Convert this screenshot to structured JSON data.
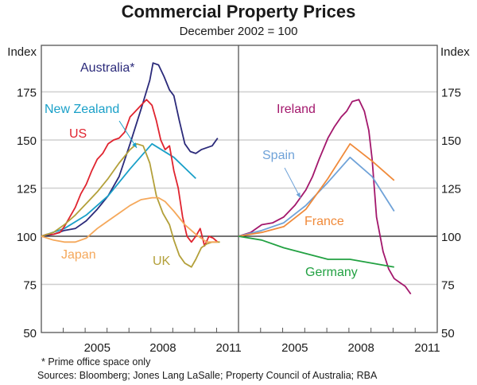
{
  "chart_data": [
    {
      "type": "line",
      "panel": "left",
      "title": "Commercial Property Prices",
      "subtitle": "December 2002 = 100",
      "ylabel": "Index",
      "ylim": [
        50,
        190
      ],
      "yticks": [
        50,
        75,
        100,
        125,
        150,
        175
      ],
      "xlim": [
        2002.95,
        2011.95
      ],
      "xtick_labels": [
        "2005",
        "2008",
        "2011"
      ],
      "grid": true,
      "series": [
        {
          "name": "Australia*",
          "color": "#2b2a7a",
          "x": [
            2002.95,
            2003.5,
            2004.0,
            2004.5,
            2005.0,
            2005.5,
            2006.0,
            2006.5,
            2007.0,
            2007.5,
            2007.9,
            2008.05,
            2008.3,
            2008.55,
            2008.8,
            2009.0,
            2009.25,
            2009.5,
            2009.75,
            2010.0,
            2010.25,
            2010.5,
            2010.75,
            2011.0
          ],
          "y": [
            100,
            101,
            103,
            104,
            108,
            114,
            121,
            131,
            148,
            166,
            181,
            190,
            189,
            183,
            176,
            173,
            160,
            148,
            144,
            143,
            145,
            146,
            147,
            151
          ]
        },
        {
          "name": "New Zealand",
          "color": "#1aa0c8",
          "x": [
            2002.95,
            2004.0,
            2005.0,
            2006.0,
            2007.0,
            2008.0,
            2009.0,
            2010.0
          ],
          "y": [
            100,
            104,
            111,
            121,
            135,
            148,
            141,
            130
          ]
        },
        {
          "name": "US",
          "color": "#e0242f",
          "x": [
            2002.95,
            2003.2,
            2003.5,
            2003.8,
            2004.0,
            2004.25,
            2004.5,
            2004.75,
            2005.0,
            2005.25,
            2005.5,
            2005.75,
            2006.0,
            2006.25,
            2006.5,
            2006.75,
            2007.0,
            2007.25,
            2007.5,
            2007.75,
            2008.0,
            2008.2,
            2008.4,
            2008.6,
            2008.8,
            2009.0,
            2009.2,
            2009.4,
            2009.6,
            2009.8,
            2010.0,
            2010.2,
            2010.4,
            2010.6,
            2010.8,
            2011.0
          ],
          "y": [
            100,
            101,
            101,
            102,
            105,
            110,
            115,
            122,
            127,
            134,
            140,
            143,
            148,
            150,
            151,
            154,
            162,
            165,
            168,
            171,
            168,
            160,
            150,
            145,
            147,
            134,
            125,
            110,
            100,
            97,
            100,
            104,
            95,
            100,
            99,
            97
          ]
        },
        {
          "name": "UK",
          "color": "#b3a03a",
          "x": [
            2002.95,
            2003.5,
            2004.0,
            2004.5,
            2005.0,
            2005.5,
            2006.0,
            2006.5,
            2007.0,
            2007.3,
            2007.6,
            2007.9,
            2008.2,
            2008.5,
            2008.8,
            2009.0,
            2009.25,
            2009.5,
            2009.8,
            2010.0,
            2010.25,
            2010.5,
            2010.75,
            2011.1
          ],
          "y": [
            100,
            102,
            106,
            111,
            117,
            123,
            130,
            138,
            145,
            148,
            147,
            138,
            121,
            112,
            106,
            98,
            90,
            86,
            84,
            88,
            94,
            96,
            97,
            97
          ]
        },
        {
          "name": "Japan",
          "color": "#f5a85b",
          "x": [
            2002.95,
            2003.5,
            2004.0,
            2004.5,
            2005.0,
            2005.5,
            2006.0,
            2006.5,
            2007.0,
            2007.5,
            2008.0,
            2008.3,
            2008.6,
            2009.0,
            2009.5,
            2010.0,
            2010.5,
            2011.0
          ],
          "y": [
            100,
            98,
            97,
            97,
            99,
            104,
            108,
            112,
            116,
            119,
            120,
            120,
            118,
            113,
            106,
            101,
            97,
            97
          ]
        }
      ],
      "annotations": [
        {
          "text": "Australia*",
          "color": "#2b2a7a"
        },
        {
          "text": "New Zealand",
          "color": "#1aa0c8",
          "arrow": true
        },
        {
          "text": "US",
          "color": "#e0242f"
        },
        {
          "text": "Japan",
          "color": "#f5a85b"
        },
        {
          "text": "UK",
          "color": "#b3a03a"
        }
      ]
    },
    {
      "type": "line",
      "panel": "right",
      "ylabel": "Index",
      "ylim": [
        50,
        190
      ],
      "yticks": [
        50,
        75,
        100,
        125,
        150,
        175
      ],
      "xlim": [
        2002.95,
        2011.95
      ],
      "xtick_labels": [
        "2005",
        "2008",
        "2011"
      ],
      "grid": true,
      "series": [
        {
          "name": "Ireland",
          "color": "#a3176c",
          "x": [
            2002.95,
            2003.5,
            2004.0,
            2004.5,
            2005.0,
            2005.5,
            2006.0,
            2006.3,
            2006.6,
            2007.0,
            2007.3,
            2007.6,
            2007.85,
            2008.1,
            2008.4,
            2008.65,
            2008.85,
            2009.0,
            2009.2,
            2009.5,
            2009.75,
            2010.0,
            2010.25,
            2010.5,
            2010.75
          ],
          "y": [
            100,
            102,
            106,
            107,
            110,
            116,
            124,
            131,
            140,
            151,
            157,
            162,
            165,
            170,
            171,
            165,
            155,
            140,
            110,
            92,
            83,
            78,
            76,
            74,
            70
          ]
        },
        {
          "name": "Spain",
          "color": "#6fa2d8",
          "x": [
            2002.95,
            2004.0,
            2005.0,
            2006.0,
            2007.0,
            2008.0,
            2009.0,
            2010.0
          ],
          "y": [
            100,
            103,
            107,
            116,
            128,
            141,
            131,
            113
          ]
        },
        {
          "name": "France",
          "color": "#f08a3a",
          "x": [
            2002.95,
            2004.0,
            2005.0,
            2006.0,
            2007.0,
            2008.0,
            2009.0,
            2010.0
          ],
          "y": [
            100,
            102,
            105,
            114,
            130,
            148,
            139,
            129
          ]
        },
        {
          "name": "Germany",
          "color": "#22a142",
          "x": [
            2002.95,
            2004.0,
            2005.0,
            2006.0,
            2007.0,
            2008.0,
            2009.0,
            2010.0
          ],
          "y": [
            100,
            98,
            94,
            91,
            88,
            88,
            86,
            84
          ]
        }
      ],
      "annotations": [
        {
          "text": "Ireland",
          "color": "#a3176c"
        },
        {
          "text": "Spain",
          "color": "#6fa2d8",
          "arrow": true
        },
        {
          "text": "France",
          "color": "#f08a3a"
        },
        {
          "text": "Germany",
          "color": "#22a142"
        }
      ]
    }
  ],
  "header": {
    "title": "Commercial Property Prices",
    "subtitle": "December 2002 = 100"
  },
  "footer": {
    "footnote": "*   Prime office space only",
    "sources": "Sources: Bloomberg; Jones Lang LaSalle; Property Council of Australia; RBA"
  }
}
